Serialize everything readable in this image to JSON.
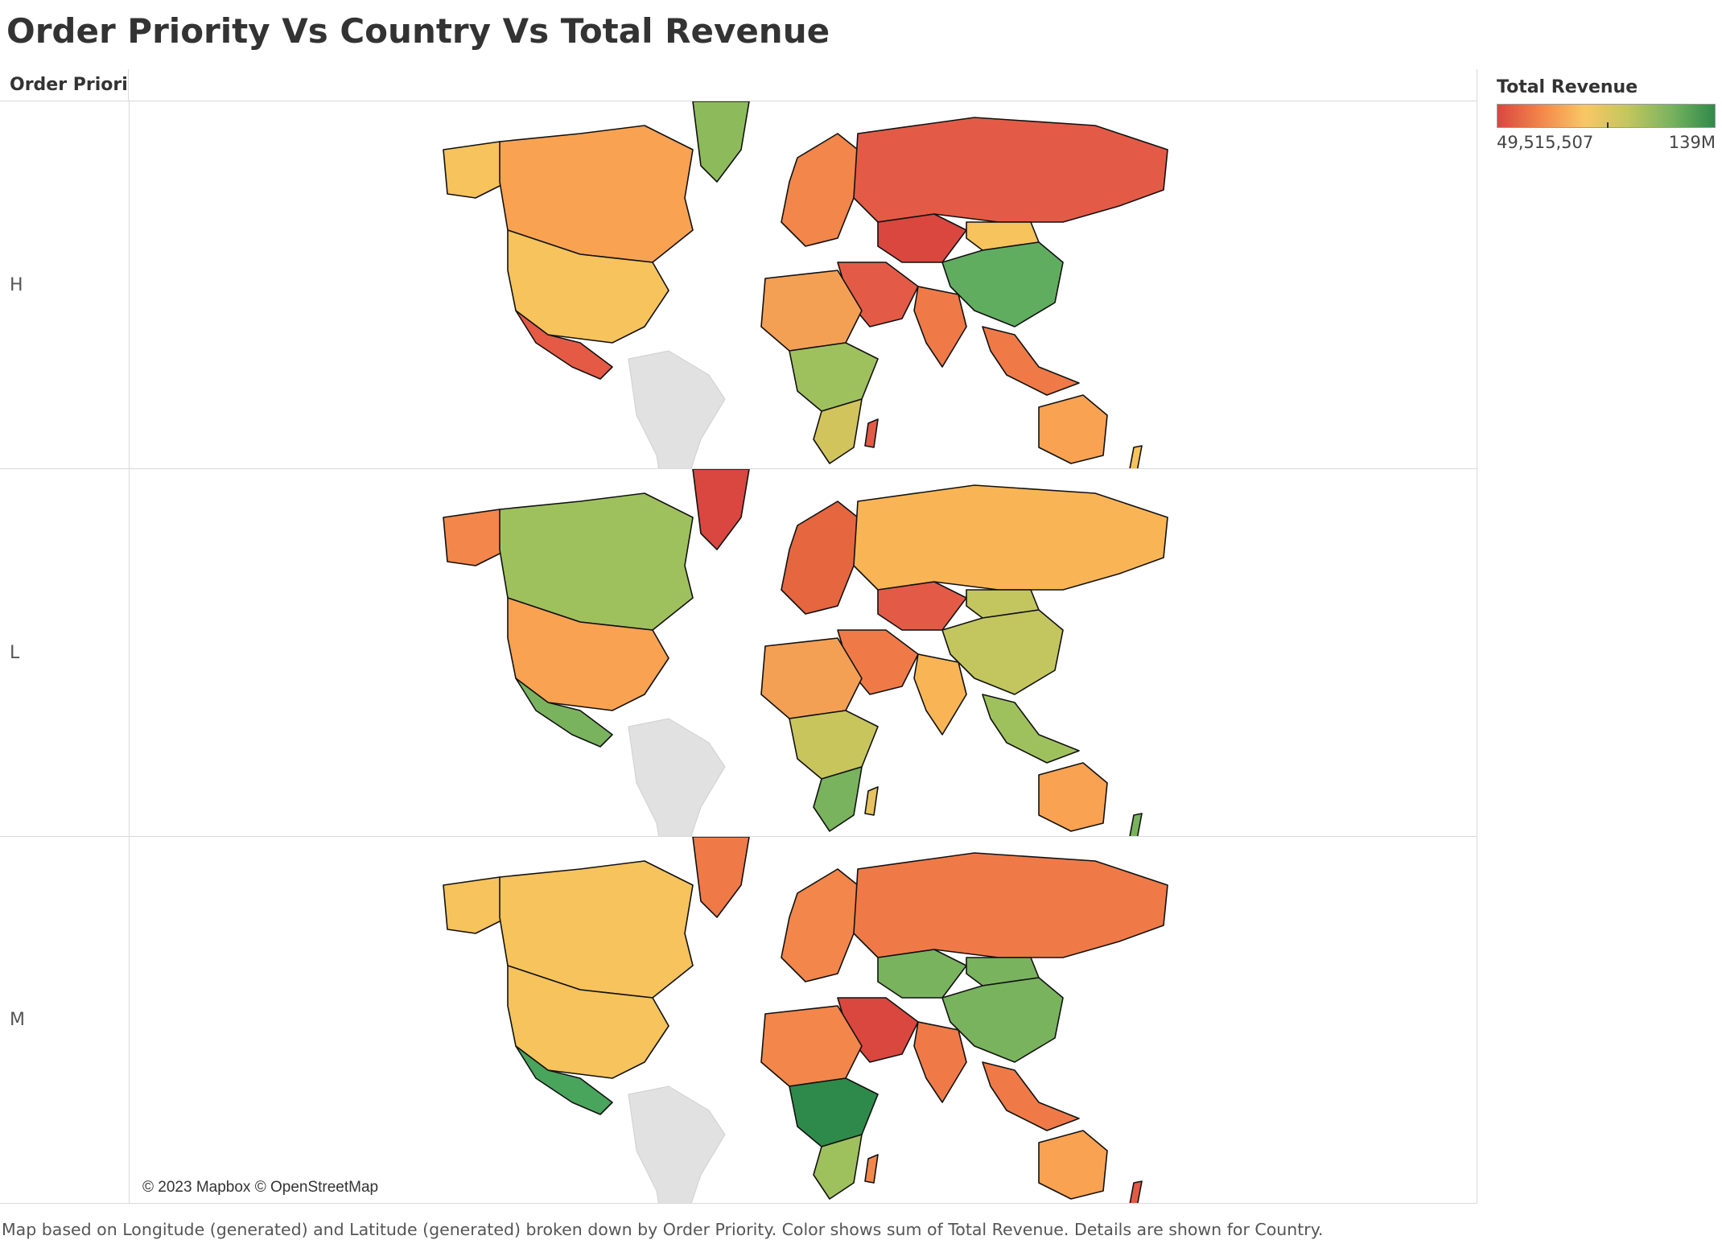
{
  "title": "Order Priority Vs Country Vs Total Revenue",
  "column_header": "Order Priori..",
  "rows": [
    {
      "label": "H",
      "colors": {
        "north_america": "#f9a252",
        "alaska": "#f6c35c",
        "usa": "#f6c35c",
        "mexico": "#e55a45",
        "greenland": "#8dbb5b",
        "russia": "#e35b46",
        "china": "#61ad60",
        "kazakh": "#d9473f",
        "mongolia": "#f6c35c",
        "europe": "#f3864a",
        "middle_east": "#e35b46",
        "india": "#ef7a48",
        "africa_n": "#f3a055",
        "africa_c": "#9fc15d",
        "africa_s": "#d2c45d",
        "australia": "#f9a252",
        "southeast_asia": "#ef7a48",
        "madagascar": "#e35b46",
        "new_zealand": "#f6c35c"
      }
    },
    {
      "label": "L",
      "colors": {
        "north_america": "#9fc15d",
        "alaska": "#f3864a",
        "usa": "#f9a252",
        "mexico": "#79b35e",
        "greenland": "#d94740",
        "russia": "#f9b555",
        "china": "#c3c65e",
        "kazakh": "#e35b46",
        "mongolia": "#c3c65e",
        "europe": "#e5663f",
        "middle_east": "#ef7a48",
        "india": "#f9b555",
        "africa_n": "#f3a055",
        "africa_c": "#c8c55d",
        "africa_s": "#79b35e",
        "australia": "#f9a252",
        "southeast_asia": "#9fc15d",
        "madagascar": "#e6c35f",
        "new_zealand": "#79b35e"
      }
    },
    {
      "label": "M",
      "colors": {
        "north_america": "#f6c35c",
        "alaska": "#f6c35c",
        "usa": "#f6c35c",
        "mexico": "#49a45c",
        "greenland": "#ef7a48",
        "russia": "#ef7a48",
        "china": "#79b35e",
        "kazakh": "#79b35e",
        "mongolia": "#79b35e",
        "europe": "#f3864a",
        "middle_east": "#d9473f",
        "india": "#ef7a48",
        "africa_n": "#f3864a",
        "africa_c": "#2e8a4a",
        "africa_s": "#9fc15d",
        "australia": "#f9a252",
        "southeast_asia": "#ef7a48",
        "madagascar": "#f3864a",
        "new_zealand": "#e35b46"
      }
    }
  ],
  "no_data_color": "#e1e1e1",
  "attribution": "© 2023 Mapbox © OpenStreetMap",
  "legend": {
    "title": "Total Revenue",
    "min_label": "49,515,507",
    "max_label": "139M",
    "gradient": [
      "#d94740",
      "#f3864a",
      "#f9c765",
      "#c3c65e",
      "#79b35e",
      "#2e8a4a"
    ]
  },
  "footnote": "Map based on Longitude (generated) and Latitude (generated) broken down by Order Priority.  Color shows sum of Total Revenue.  Details are shown for Country."
}
